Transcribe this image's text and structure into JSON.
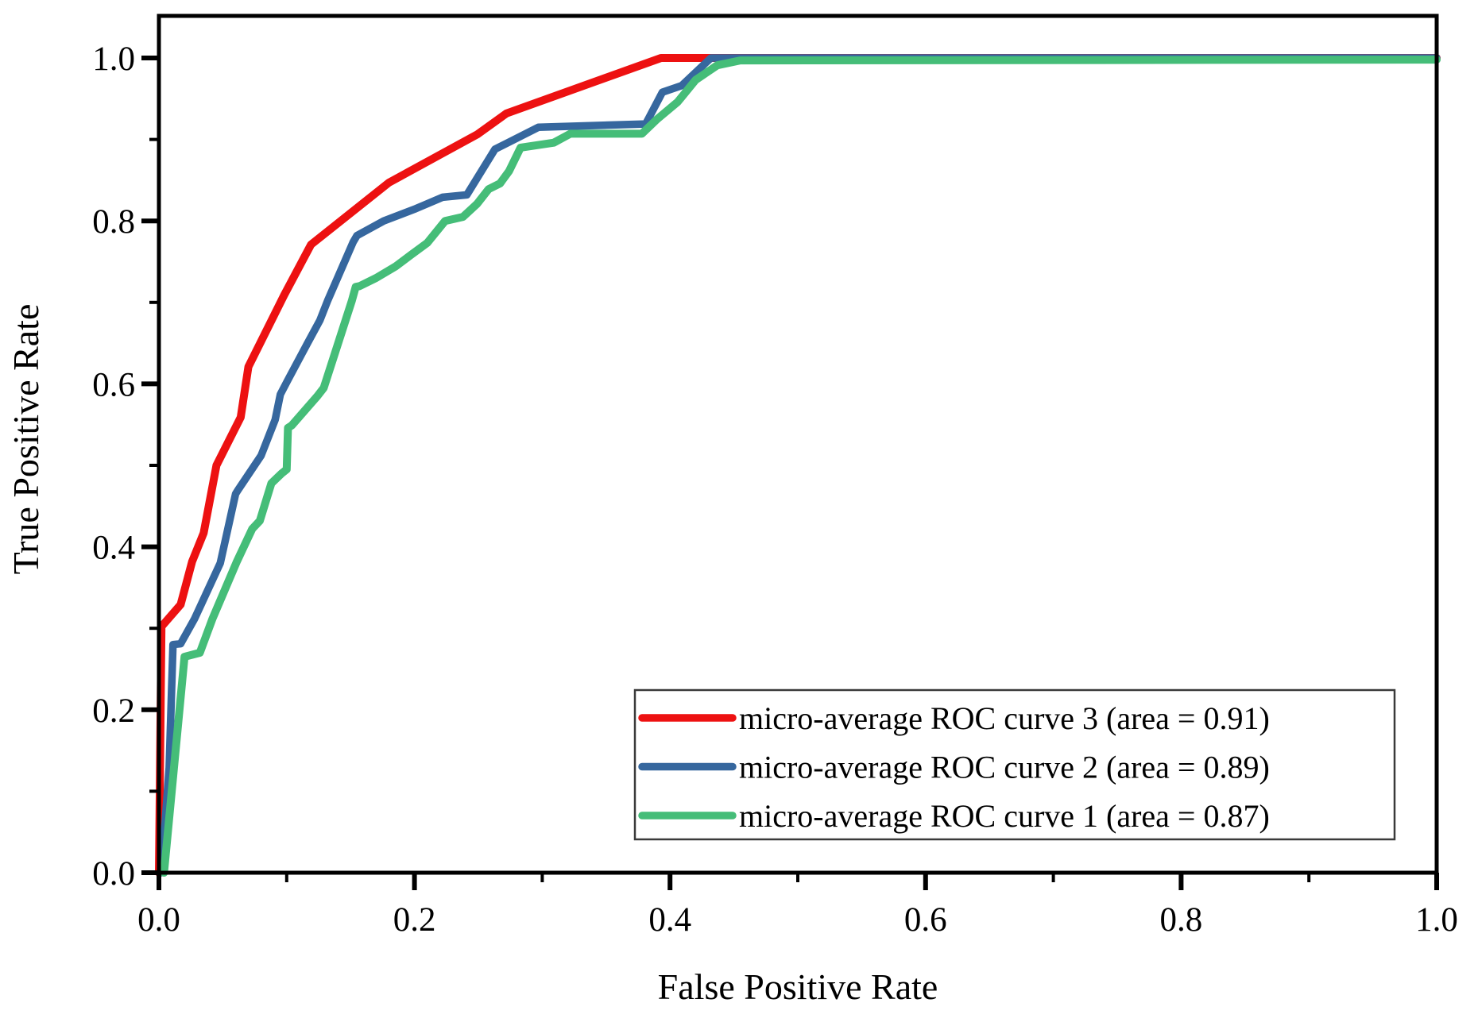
{
  "chart_data": {
    "type": "line",
    "title": "",
    "xlabel": "False Positive Rate",
    "ylabel": "True Positive Rate",
    "xlim": [
      0.0,
      1.0
    ],
    "ylim": [
      0.0,
      1.052
    ],
    "grid": false,
    "frame": true,
    "axis_color": "#000000",
    "x_ticks_major": {
      "values": [
        0.0,
        0.2,
        0.4,
        0.6,
        0.8,
        1.0
      ],
      "labels": [
        "0.0",
        "0.2",
        "0.4",
        "0.6",
        "0.8",
        "1.0"
      ]
    },
    "x_ticks_minor": [
      0.1,
      0.3,
      0.5,
      0.7,
      0.9
    ],
    "y_ticks_major": {
      "values": [
        0.0,
        0.2,
        0.4,
        0.6,
        0.8,
        1.0
      ],
      "labels": [
        "0.0",
        "0.2",
        "0.4",
        "0.6",
        "0.8",
        "1.0"
      ]
    },
    "y_ticks_minor": [
      0.1,
      0.3,
      0.5,
      0.7,
      0.9
    ],
    "legend": {
      "position": "lower right",
      "border_color": "#3a3a3a",
      "background": "#ffffff",
      "entries": [
        {
          "label": "micro-average ROC curve 3 (area = 0.91)",
          "color": "#ed1111"
        },
        {
          "label": "micro-average ROC curve 2 (area = 0.89)",
          "color": "#36679e"
        },
        {
          "label": "micro-average ROC curve 1 (area = 0.87)",
          "color": "#45bd78"
        }
      ]
    },
    "series": [
      {
        "name": "micro-average ROC curve 3",
        "area": 0.91,
        "color": "#ed1111",
        "line_width": 10,
        "points": [
          [
            0.0,
            0.0
          ],
          [
            0.002,
            0.302
          ],
          [
            0.017,
            0.329
          ],
          [
            0.026,
            0.382
          ],
          [
            0.035,
            0.417
          ],
          [
            0.045,
            0.5
          ],
          [
            0.064,
            0.559
          ],
          [
            0.07,
            0.621
          ],
          [
            0.098,
            0.709
          ],
          [
            0.119,
            0.771
          ],
          [
            0.18,
            0.847
          ],
          [
            0.249,
            0.906
          ],
          [
            0.272,
            0.932
          ],
          [
            0.393,
            1.0
          ],
          [
            1.0,
            1.0
          ]
        ]
      },
      {
        "name": "micro-average ROC curve 2",
        "area": 0.89,
        "color": "#36679e",
        "line_width": 9.5,
        "points": [
          [
            0.002,
            0.0
          ],
          [
            0.008,
            0.129
          ],
          [
            0.011,
            0.28
          ],
          [
            0.017,
            0.281
          ],
          [
            0.028,
            0.312
          ],
          [
            0.048,
            0.38
          ],
          [
            0.06,
            0.465
          ],
          [
            0.062,
            0.47
          ],
          [
            0.08,
            0.512
          ],
          [
            0.091,
            0.556
          ],
          [
            0.095,
            0.587
          ],
          [
            0.101,
            0.605
          ],
          [
            0.116,
            0.649
          ],
          [
            0.126,
            0.678
          ],
          [
            0.132,
            0.702
          ],
          [
            0.152,
            0.774
          ],
          [
            0.155,
            0.782
          ],
          [
            0.176,
            0.8
          ],
          [
            0.201,
            0.815
          ],
          [
            0.222,
            0.829
          ],
          [
            0.241,
            0.832
          ],
          [
            0.263,
            0.888
          ],
          [
            0.297,
            0.915
          ],
          [
            0.381,
            0.919
          ],
          [
            0.394,
            0.958
          ],
          [
            0.409,
            0.966
          ],
          [
            0.432,
            1.0
          ],
          [
            1.0,
            1.0
          ]
        ]
      },
      {
        "name": "micro-average ROC curve 1",
        "area": 0.87,
        "color": "#45bd78",
        "line_width": 10,
        "points": [
          [
            0.004,
            0.0
          ],
          [
            0.02,
            0.265
          ],
          [
            0.032,
            0.27
          ],
          [
            0.042,
            0.312
          ],
          [
            0.061,
            0.382
          ],
          [
            0.073,
            0.422
          ],
          [
            0.079,
            0.432
          ],
          [
            0.088,
            0.478
          ],
          [
            0.096,
            0.49
          ],
          [
            0.1,
            0.495
          ],
          [
            0.101,
            0.546
          ],
          [
            0.104,
            0.549
          ],
          [
            0.124,
            0.585
          ],
          [
            0.129,
            0.595
          ],
          [
            0.151,
            0.702
          ],
          [
            0.154,
            0.719
          ],
          [
            0.157,
            0.72
          ],
          [
            0.17,
            0.73
          ],
          [
            0.185,
            0.744
          ],
          [
            0.197,
            0.758
          ],
          [
            0.21,
            0.773
          ],
          [
            0.224,
            0.8
          ],
          [
            0.238,
            0.805
          ],
          [
            0.249,
            0.821
          ],
          [
            0.258,
            0.839
          ],
          [
            0.267,
            0.846
          ],
          [
            0.274,
            0.861
          ],
          [
            0.283,
            0.89
          ],
          [
            0.309,
            0.896
          ],
          [
            0.322,
            0.907
          ],
          [
            0.378,
            0.907
          ],
          [
            0.39,
            0.925
          ],
          [
            0.406,
            0.946
          ],
          [
            0.42,
            0.973
          ],
          [
            0.437,
            0.991
          ],
          [
            0.455,
            0.997
          ],
          [
            1.0,
            0.998
          ]
        ]
      }
    ]
  }
}
